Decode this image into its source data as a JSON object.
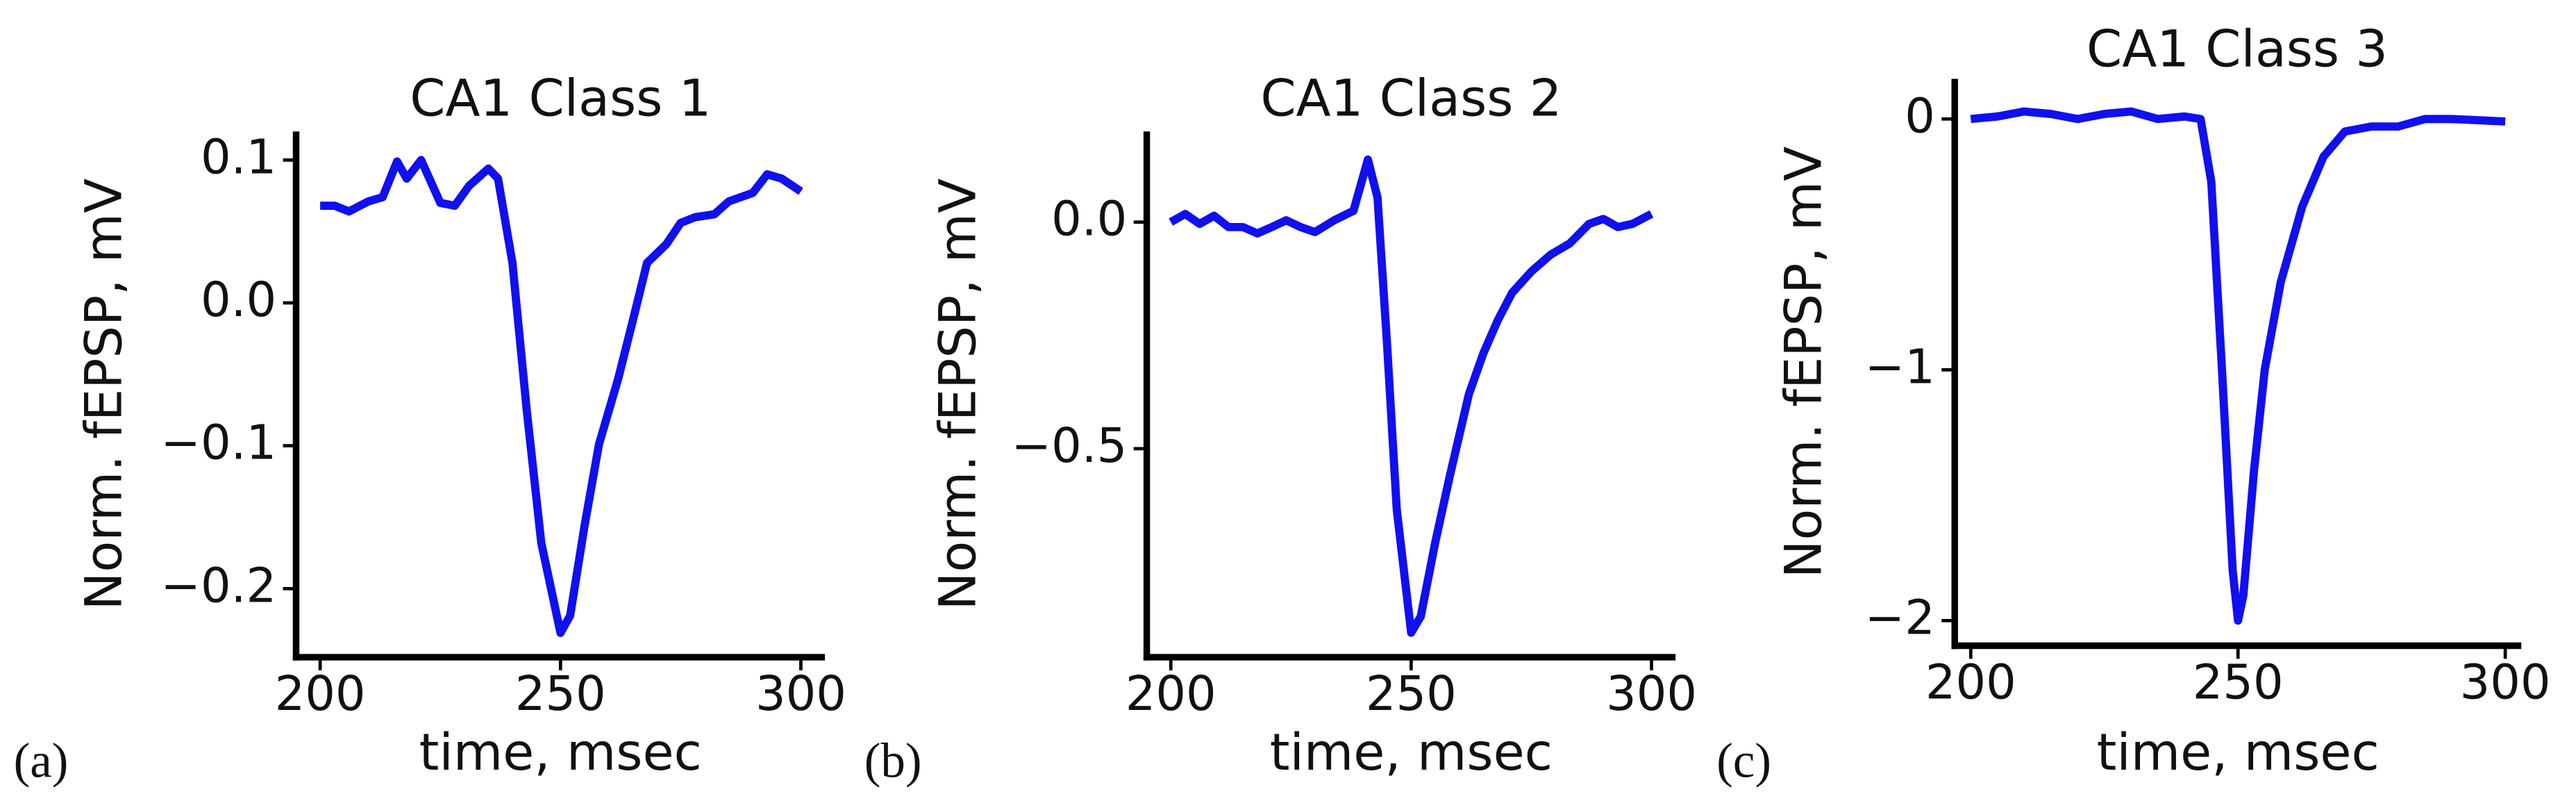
{
  "chart_data": [
    {
      "type": "line",
      "label": "(a)",
      "title": "CA1 Class 1",
      "x_label": "time, msec",
      "y_label": "Norm. fEPSP, mV",
      "x": [
        200,
        203,
        206,
        210,
        213,
        216,
        218,
        221,
        223,
        225,
        228,
        231,
        235,
        237,
        240,
        243,
        246,
        250,
        252,
        255,
        258,
        262,
        265,
        268,
        272,
        275,
        278,
        282,
        285,
        290,
        293,
        296,
        300
      ],
      "series": [
        {
          "color": "#1010f0",
          "values": [
            0.068,
            0.068,
            0.064,
            0.071,
            0.074,
            0.099,
            0.087,
            0.1,
            0.085,
            0.07,
            0.068,
            0.082,
            0.094,
            0.087,
            0.028,
            -0.076,
            -0.168,
            -0.231,
            -0.219,
            -0.156,
            -0.099,
            -0.053,
            -0.013,
            0.028,
            0.041,
            0.056,
            0.06,
            0.062,
            0.071,
            0.077,
            0.09,
            0.087,
            0.078
          ]
        }
      ],
      "xlim": [
        195,
        305
      ],
      "xticks": [
        200,
        250,
        300
      ],
      "ylim": [
        -0.248,
        0.12
      ],
      "yticks": [
        {
          "value": -0.2,
          "label": "−0.2"
        },
        {
          "value": -0.1,
          "label": "−0.1"
        },
        {
          "value": 0,
          "label": "0.0"
        },
        0.1
      ]
    },
    {
      "type": "line",
      "label": "(b)",
      "title": "CA1 Class 2",
      "x_label": "time, msec",
      "y_label": "Norm. fEPSP, mV",
      "x": [
        200,
        203,
        206,
        209,
        212,
        215,
        218,
        221,
        224,
        227,
        230,
        234,
        238,
        241,
        243,
        245,
        247,
        250,
        252,
        255,
        258,
        262,
        265,
        268,
        271,
        275,
        279,
        283,
        287,
        290,
        293,
        296,
        300
      ],
      "series": [
        {
          "color": "#1010f0",
          "values": [
            0,
            0.018,
            -0.004,
            0.014,
            -0.011,
            -0.011,
            -0.025,
            -0.011,
            0.004,
            -0.011,
            -0.022,
            0.004,
            0.025,
            0.138,
            0.054,
            -0.272,
            -0.634,
            -0.906,
            -0.87,
            -0.707,
            -0.562,
            -0.38,
            -0.29,
            -0.217,
            -0.156,
            -0.109,
            -0.072,
            -0.047,
            -0.004,
            0.007,
            -0.011,
            -0.004,
            0.018
          ]
        }
      ],
      "xlim": [
        195,
        305
      ],
      "xticks": [
        200,
        250,
        300
      ],
      "ylim": [
        -0.96,
        0.2
      ],
      "yticks": [
        {
          "value": -0.5,
          "label": "−0.5"
        },
        {
          "value": 0,
          "label": "0.0"
        }
      ]
    },
    {
      "type": "line",
      "label": "(c)",
      "title": "CA1 Class 3",
      "x_label": "time, msec",
      "y_label": "Norm. fEPSP, mV",
      "x": [
        200,
        205,
        210,
        215,
        220,
        225,
        230,
        235,
        240,
        243,
        245,
        247,
        249,
        250,
        251,
        253,
        255,
        258,
        262,
        266,
        270,
        275,
        280,
        285,
        290,
        300
      ],
      "series": [
        {
          "color": "#1010f0",
          "values": [
            0,
            0.01,
            0.03,
            0.02,
            0,
            0.02,
            0.03,
            0,
            0.01,
            0,
            -0.25,
            -1.0,
            -1.8,
            -2.0,
            -1.9,
            -1.4,
            -1.0,
            -0.65,
            -0.35,
            -0.15,
            -0.05,
            -0.03,
            -0.03,
            0,
            0,
            -0.01
          ]
        }
      ],
      "xlim": [
        197,
        303
      ],
      "xticks": [
        200,
        250,
        300
      ],
      "ylim": [
        -2.1,
        0.16
      ],
      "yticks": [
        {
          "value": -2,
          "label": "−2"
        },
        {
          "value": -1,
          "label": "−1"
        },
        0
      ]
    }
  ]
}
